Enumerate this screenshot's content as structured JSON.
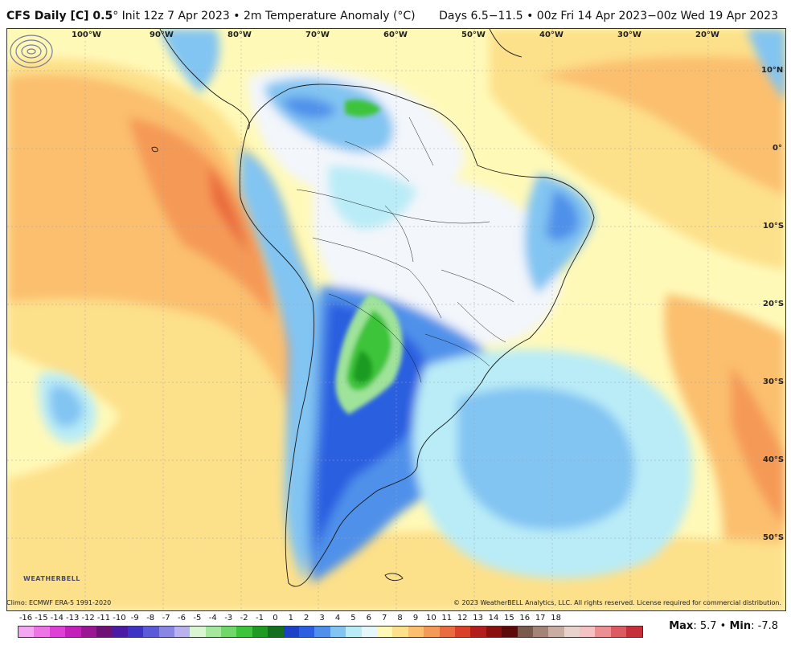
{
  "header": {
    "model": "CFS Daily [C] 0.5",
    "degree": "°",
    "init": "Init 12z 7 Apr 2023",
    "sep": "•",
    "field": "2m Temperature Anomaly (°C)",
    "valid": "Days 6.5−11.5 • 00z Fri 14 Apr 2023−00z Wed 19 Apr 2023"
  },
  "map": {
    "lon_labels": [
      "100°W",
      "90°W",
      "80°W",
      "70°W",
      "60°W",
      "50°W",
      "40°W",
      "30°W",
      "20°W"
    ],
    "lat_labels": [
      "10°N",
      "0°",
      "10°S",
      "20°S",
      "30°S",
      "40°S",
      "50°S"
    ],
    "colors": {
      "background": "#fff9b8",
      "warm_light": "#fde08a",
      "warm": "#fbbf6e",
      "warmer": "#f59a56",
      "hot": "#ea6b3e",
      "neutral": "#f3f6fb",
      "cool_light": "#b9ecf7",
      "cool": "#82c4f2",
      "cooler": "#4f91ea",
      "cold": "#2b5fe0",
      "green_light": "#9fe39a",
      "green": "#3ec43b",
      "green_dark": "#1f9b22",
      "land_border": "#1a1a1a"
    }
  },
  "logo": {
    "text": "WEATHERBELL"
  },
  "footer": {
    "climo": "Climo: ECMWF ERA-5 1991-2020",
    "copyright": "© 2023 WeatherBELL Analytics, LLC. All rights reserved. License required for commercial distribution."
  },
  "colorbar": {
    "labels": [
      "-16",
      "-15",
      "-14",
      "-13",
      "-12",
      "-11",
      "-10",
      "-9",
      "-8",
      "-7",
      "-6",
      "-5",
      "-4",
      "-3",
      "-2",
      "-1",
      "0",
      "1",
      "2",
      "3",
      "4",
      "5",
      "6",
      "7",
      "8",
      "9",
      "10",
      "11",
      "12",
      "13",
      "14",
      "15",
      "16",
      "17",
      "18"
    ],
    "swatches": [
      "#f5a6f0",
      "#ee74e6",
      "#de3fd6",
      "#c31fb9",
      "#9a1794",
      "#6d1174",
      "#4a1aa4",
      "#3f33c6",
      "#5b5bd8",
      "#8a86e4",
      "#b9b2ee",
      "#d9f5d2",
      "#a6e79e",
      "#6fd869",
      "#3ec43b",
      "#1f9b22",
      "#146f1e",
      "#1d40c8",
      "#2b5fe0",
      "#4f91ea",
      "#82c4f2",
      "#b9ecf7",
      "#e6f7fc",
      "#fff9b8",
      "#fde08a",
      "#fbbf6e",
      "#f59a56",
      "#ea6b3e",
      "#d8402a",
      "#b21e1e",
      "#8a1010",
      "#5c0a0a",
      "#7a5a4e",
      "#a58478",
      "#c9aca2",
      "#e8d3cc",
      "#f4c2c2",
      "#eb8f93",
      "#dc5a61",
      "#c5303a"
    ]
  },
  "stats": {
    "max_label": "Max",
    "max_value": ": 5.7",
    "sep": " • ",
    "min_label": "Min",
    "min_value": ": -7.8"
  }
}
